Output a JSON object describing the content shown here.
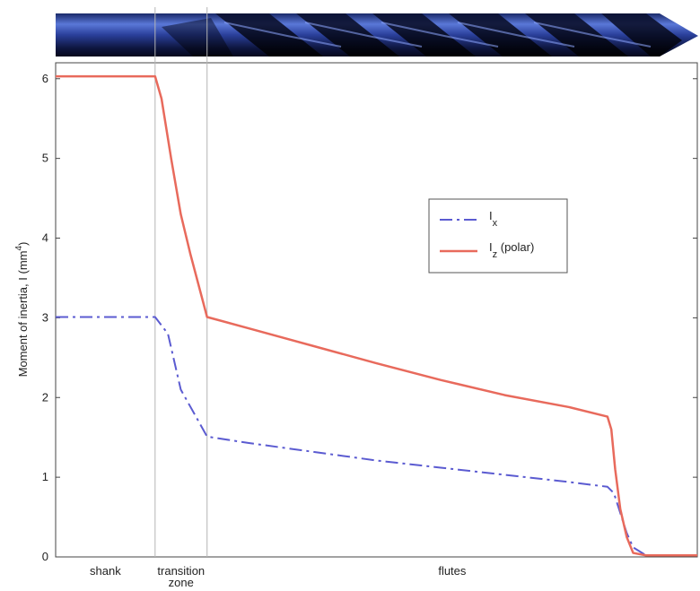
{
  "chart_data": {
    "type": "line",
    "ylabel_main": "Moment of inertia, I (mm",
    "ylabel_sup": "4",
    "ylabel_close": ")",
    "xlim": [
      0,
      100
    ],
    "ylim": [
      0,
      6.2
    ],
    "yticks": [
      0,
      1,
      2,
      3,
      4,
      5,
      6
    ],
    "x_regions": [
      {
        "label_lines": [
          "shank"
        ],
        "x_start": 0,
        "x_end": 15.5
      },
      {
        "label_lines": [
          "transition",
          "zone"
        ],
        "x_start": 15.5,
        "x_end": 23.6
      },
      {
        "label_lines": [
          "flutes"
        ],
        "x_start": 23.6,
        "x_end": 100
      }
    ],
    "legend": {
      "position": "middle-right",
      "entries": [
        {
          "main": "I",
          "sub": "x",
          "rest": ""
        },
        {
          "main": "I",
          "sub": "z",
          "rest": " (polar)"
        }
      ]
    },
    "series": [
      {
        "key": "Ix",
        "color": "#5b5bd1",
        "dash": "dash-dot",
        "x": [
          0,
          15.5,
          17.5,
          19.5,
          23.6,
          30,
          40,
          50,
          60,
          70,
          80,
          86,
          87,
          88,
          89,
          90,
          92,
          100
        ],
        "y": [
          3.01,
          3.01,
          2.8,
          2.1,
          1.51,
          1.43,
          1.32,
          1.21,
          1.12,
          1.03,
          0.94,
          0.88,
          0.8,
          0.55,
          0.3,
          0.12,
          0.02,
          0.02
        ]
      },
      {
        "key": "Iz",
        "color": "#e86a5c",
        "dash": "solid",
        "x": [
          0,
          15.5,
          16.5,
          18,
          19.5,
          21,
          23.6,
          30,
          40,
          50,
          60,
          70,
          80,
          86,
          86.6,
          87.2,
          88,
          89,
          90,
          92,
          100
        ],
        "y": [
          6.03,
          6.03,
          5.75,
          5.0,
          4.3,
          3.8,
          3.01,
          2.87,
          2.65,
          2.43,
          2.22,
          2.03,
          1.88,
          1.76,
          1.6,
          1.1,
          0.6,
          0.25,
          0.05,
          0.02,
          0.02
        ]
      }
    ]
  }
}
